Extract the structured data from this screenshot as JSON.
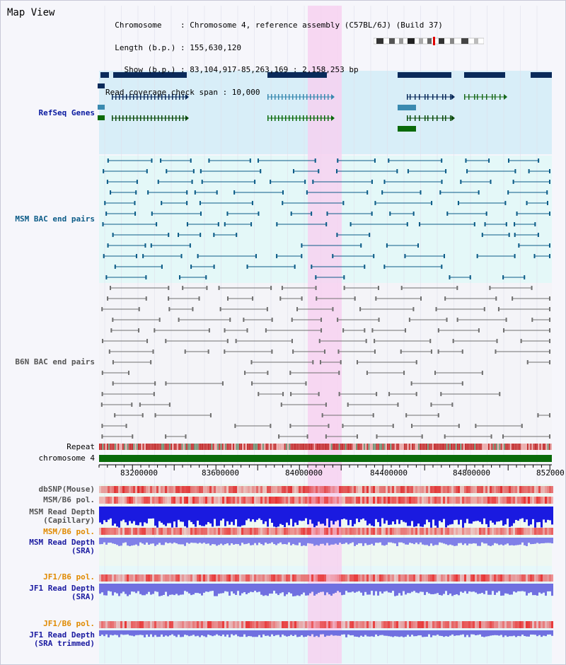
{
  "title": "Map View",
  "info_lines": [
    "  Chromosome    : Chromosome 4, reference assembly (C57BL/6J) (Build 37)",
    "  Length (b.p.) : 155,630,120",
    "    Show (b.p.) : 83,104,917-85,263,169 : 2,158,253 bp",
    "Read coverage check span : 10,000"
  ],
  "tracks": {
    "refseq": "RefSeq Genes",
    "msm_bac": "MSM BAC end pairs",
    "b6n_bac": "B6N BAC end pairs",
    "repeat": "Repeat",
    "chromosome": "chromosome 4",
    "dbsnp": "dbSNP(Mouse)",
    "msm_b6_pol": "MSM/B6 pol.",
    "msm_depth_cap_1": "MSM Read Depth",
    "msm_depth_cap_2": "(Capillary)",
    "msm_b6_pol_2": "MSM/B6 pol.",
    "msm_depth_sra_1": "MSM Read Depth",
    "msm_depth_sra_2": "(SRA)",
    "jf1_b6_pol": "JF1/B6 pol.",
    "jf1_depth_sra_1": "JF1 Read Depth",
    "jf1_depth_sra_2": "(SRA)",
    "jf1_b6_pol_2": "JF1/B6 pol.",
    "jf1_depth_trim_1": "JF1 Read Depth",
    "jf1_depth_trim_2": "(SRA trimmed)"
  },
  "axis_ticks": [
    "83200000",
    "83600000",
    "84000000",
    "84400000",
    "84800000",
    "852000"
  ],
  "colors": {
    "refseq_bg": "#d8eef8",
    "msm_bg": "#e4f8f8",
    "highlight": "#f8d0f0",
    "gene_dark": "#0a2a5a",
    "chromosome_bar": "#0a6a0a",
    "depth_blue": "#1a1ae0"
  }
}
